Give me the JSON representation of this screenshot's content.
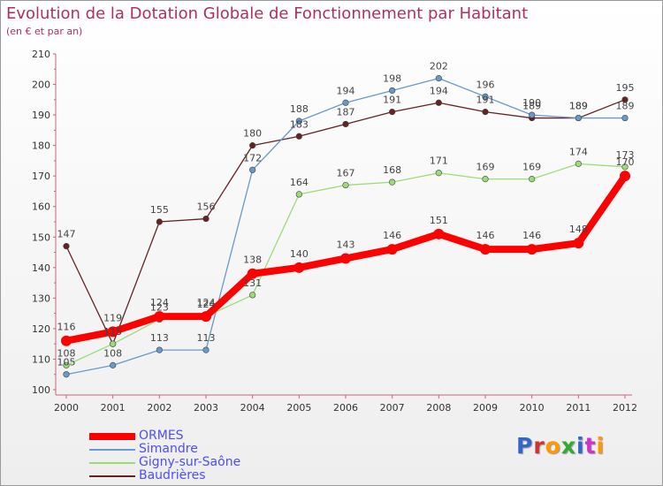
{
  "header": {
    "title": "Evolution de la Dotation Globale de Fonctionnement par Habitant",
    "subtitle": "(en € et par an)"
  },
  "logo": {
    "text": "Proxiti",
    "colors": [
      "#3366cc",
      "#cc3333",
      "#ff9900",
      "#33aa33",
      "#3366cc",
      "#cc33cc",
      "#ff9900"
    ]
  },
  "chart_data": {
    "type": "line",
    "x": [
      2000,
      2001,
      2002,
      2003,
      2004,
      2005,
      2006,
      2007,
      2008,
      2009,
      2010,
      2011,
      2012
    ],
    "ylim": [
      100,
      210
    ],
    "yticks": [
      100,
      110,
      120,
      130,
      140,
      150,
      160,
      170,
      180,
      190,
      200,
      210
    ],
    "grid": false,
    "legend_position": "bottom-left",
    "series": [
      {
        "name": "ORMES",
        "color": "#ff0000",
        "values": [
          116,
          119,
          124,
          124,
          138,
          140,
          143,
          146,
          151,
          146,
          146,
          148,
          170
        ]
      },
      {
        "name": "Simandre",
        "color": "#6699cc",
        "values": [
          105,
          108,
          113,
          113,
          172,
          188,
          194,
          198,
          202,
          196,
          190,
          189,
          189
        ]
      },
      {
        "name": "Gigny-sur-Saône",
        "color": "#99dd77",
        "values": [
          108,
          115,
          123,
          124,
          131,
          164,
          167,
          168,
          171,
          169,
          169,
          174,
          173
        ]
      },
      {
        "name": "Baudrières",
        "color": "#662222",
        "values": [
          147,
          115,
          155,
          156,
          180,
          183,
          187,
          191,
          194,
          191,
          189,
          189,
          195
        ]
      }
    ]
  }
}
